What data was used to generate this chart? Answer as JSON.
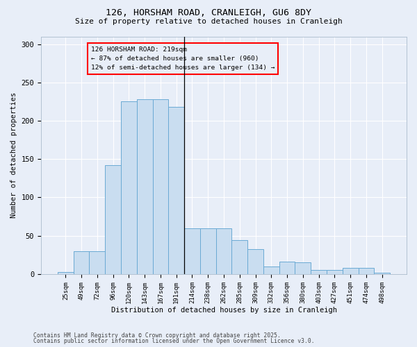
{
  "title_line1": "126, HORSHAM ROAD, CRANLEIGH, GU6 8DY",
  "title_line2": "Size of property relative to detached houses in Cranleigh",
  "xlabel": "Distribution of detached houses by size in Cranleigh",
  "ylabel": "Number of detached properties",
  "categories": [
    "25sqm",
    "49sqm",
    "72sqm",
    "96sqm",
    "120sqm",
    "143sqm",
    "167sqm",
    "191sqm",
    "214sqm",
    "238sqm",
    "262sqm",
    "285sqm",
    "309sqm",
    "332sqm",
    "356sqm",
    "380sqm",
    "403sqm",
    "427sqm",
    "451sqm",
    "474sqm",
    "498sqm"
  ],
  "bar_values": [
    3,
    30,
    30,
    142,
    225,
    228,
    228,
    218,
    60,
    60,
    60,
    44,
    33,
    10,
    16,
    15,
    5,
    5,
    8,
    8,
    2
  ],
  "bar_color": "#c9ddf0",
  "bar_edge_color": "#6aaad4",
  "background_color": "#e8eef8",
  "grid_color": "#ffffff",
  "annotation_text": "126 HORSHAM ROAD: 219sqm\n← 87% of detached houses are smaller (960)\n12% of semi-detached houses are larger (134) →",
  "vline_index": 7.5,
  "ylim": [
    0,
    310
  ],
  "yticks": [
    0,
    50,
    100,
    150,
    200,
    250,
    300
  ],
  "footer_line1": "Contains HM Land Registry data © Crown copyright and database right 2025.",
  "footer_line2": "Contains public sector information licensed under the Open Government Licence v3.0."
}
